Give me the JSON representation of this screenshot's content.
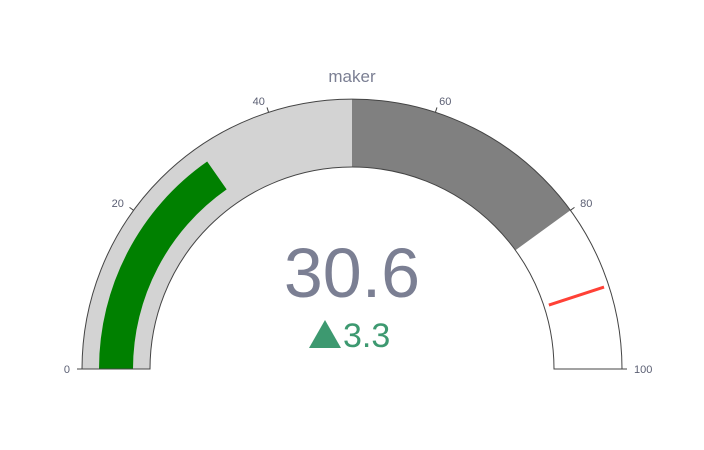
{
  "chart_data": {
    "type": "gauge",
    "title": "maker",
    "value": 30.6,
    "value_text": "30.6",
    "delta": {
      "value": 3.3,
      "text": "3.3",
      "direction": "increasing",
      "color": "#3d9970"
    },
    "axis": {
      "range": [
        0,
        100
      ],
      "ticks": [
        {
          "value": 0,
          "label": "0"
        },
        {
          "value": 20,
          "label": "20"
        },
        {
          "value": 40,
          "label": "40"
        },
        {
          "value": 60,
          "label": "60"
        },
        {
          "value": 80,
          "label": "80"
        },
        {
          "value": 100,
          "label": "100"
        }
      ]
    },
    "steps": [
      {
        "range": [
          0,
          50
        ],
        "color": "#d3d3d3"
      },
      {
        "range": [
          50,
          80
        ],
        "color": "#808080"
      }
    ],
    "bar": {
      "value": 30.6,
      "color": "#008000"
    },
    "threshold": {
      "value": 90,
      "color": "#ff4136"
    },
    "background_color": "#ffffff",
    "border_color": "#444444",
    "text_color": "#7b7f93"
  }
}
